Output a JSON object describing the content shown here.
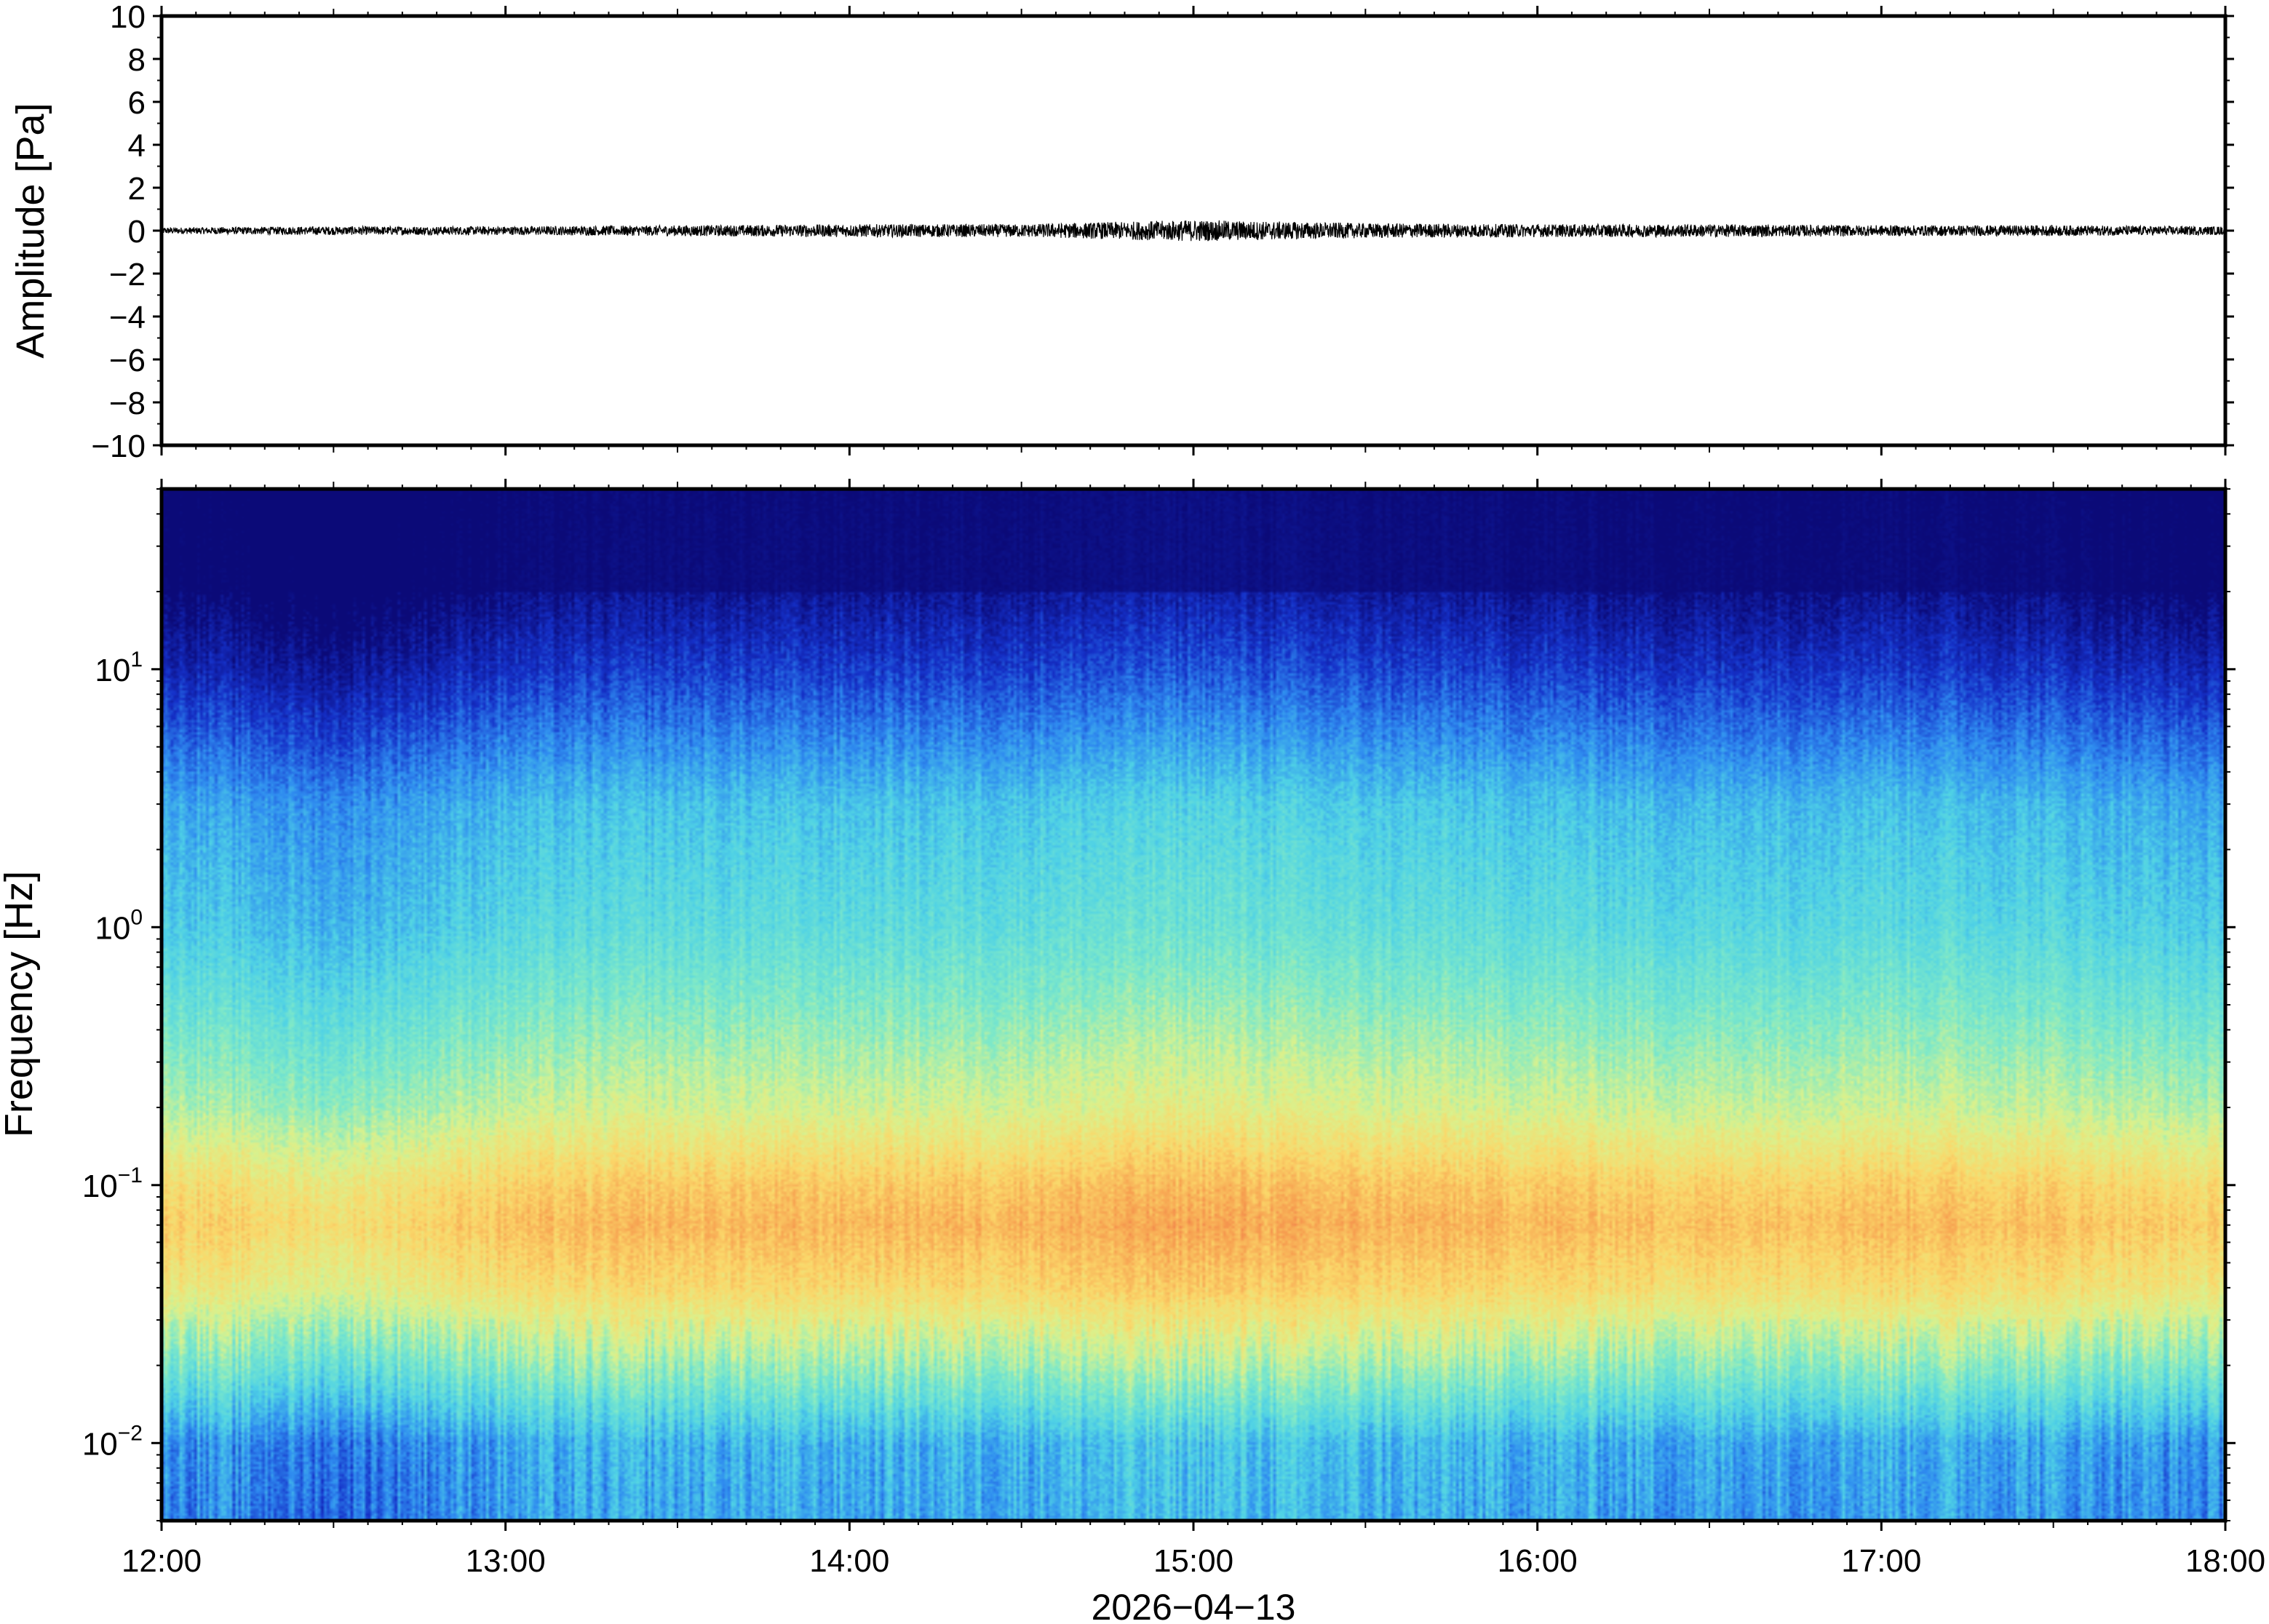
{
  "chart_data": [
    {
      "type": "line",
      "panel": "waveform",
      "ylabel": "Amplitude [Pa]",
      "ylim": [
        -10,
        10
      ],
      "yticks": [
        -10,
        -8,
        -6,
        -4,
        -2,
        0,
        2,
        4,
        6,
        8,
        10
      ],
      "ytick_labels": [
        "−10",
        "−8",
        "−6",
        "−4",
        "−2",
        "0",
        "2",
        "4",
        "6",
        "8",
        "10"
      ],
      "x_start": "12:00",
      "x_end": "18:00",
      "series": [
        {
          "x": [
            "12:00",
            "12:30",
            "13:00",
            "13:30",
            "14:00",
            "14:30",
            "15:00",
            "15:30",
            "16:00",
            "16:30",
            "17:00",
            "17:30",
            "18:00"
          ],
          "envelope_abs": [
            0.15,
            0.2,
            0.2,
            0.25,
            0.3,
            0.3,
            0.5,
            0.35,
            0.3,
            0.3,
            0.25,
            0.25,
            0.2
          ]
        }
      ],
      "trace_color": "#000000"
    },
    {
      "type": "heatmap",
      "panel": "spectrogram",
      "ylabel": "Frequency [Hz]",
      "yscale": "log",
      "ylim": [
        0.005,
        50
      ],
      "yticks": [
        0.01,
        0.1,
        1,
        10
      ],
      "ytick_labels": [
        {
          "base": "10",
          "exp": "−2"
        },
        {
          "base": "10",
          "exp": "−1"
        },
        {
          "base": "10",
          "exp": "0"
        },
        {
          "base": "10",
          "exp": "1"
        }
      ],
      "x_ticks": [
        "12:00",
        "13:00",
        "14:00",
        "15:00",
        "16:00",
        "17:00",
        "18:00"
      ],
      "xlabel": "2026−04−13",
      "colormap": "rainbow",
      "colormap_stops": [
        "#0b0a78",
        "#1530c8",
        "#2f8cf0",
        "#4fd2e6",
        "#7fe9c8",
        "#d9f28e",
        "#fbd86a",
        "#f7a050",
        "#ec5f45"
      ],
      "power_profile": {
        "freq_hz": [
          0.005,
          0.01,
          0.02,
          0.04,
          0.07,
          0.1,
          0.2,
          0.5,
          1,
          3,
          10,
          20,
          50
        ],
        "level": [
          0.28,
          0.3,
          0.52,
          0.72,
          0.8,
          0.76,
          0.6,
          0.48,
          0.4,
          0.33,
          0.12,
          0.02,
          0.0
        ]
      },
      "temporal_modulation": {
        "time": [
          "12:00",
          "12:30",
          "13:00",
          "13:30",
          "14:00",
          "14:30",
          "15:00",
          "15:30",
          "16:00",
          "16:30",
          "17:00",
          "17:30",
          "18:00"
        ],
        "offset": [
          -0.02,
          -0.08,
          0.0,
          0.02,
          0.02,
          0.03,
          0.06,
          0.03,
          0.02,
          0.0,
          0.02,
          0.0,
          -0.04
        ]
      }
    }
  ]
}
